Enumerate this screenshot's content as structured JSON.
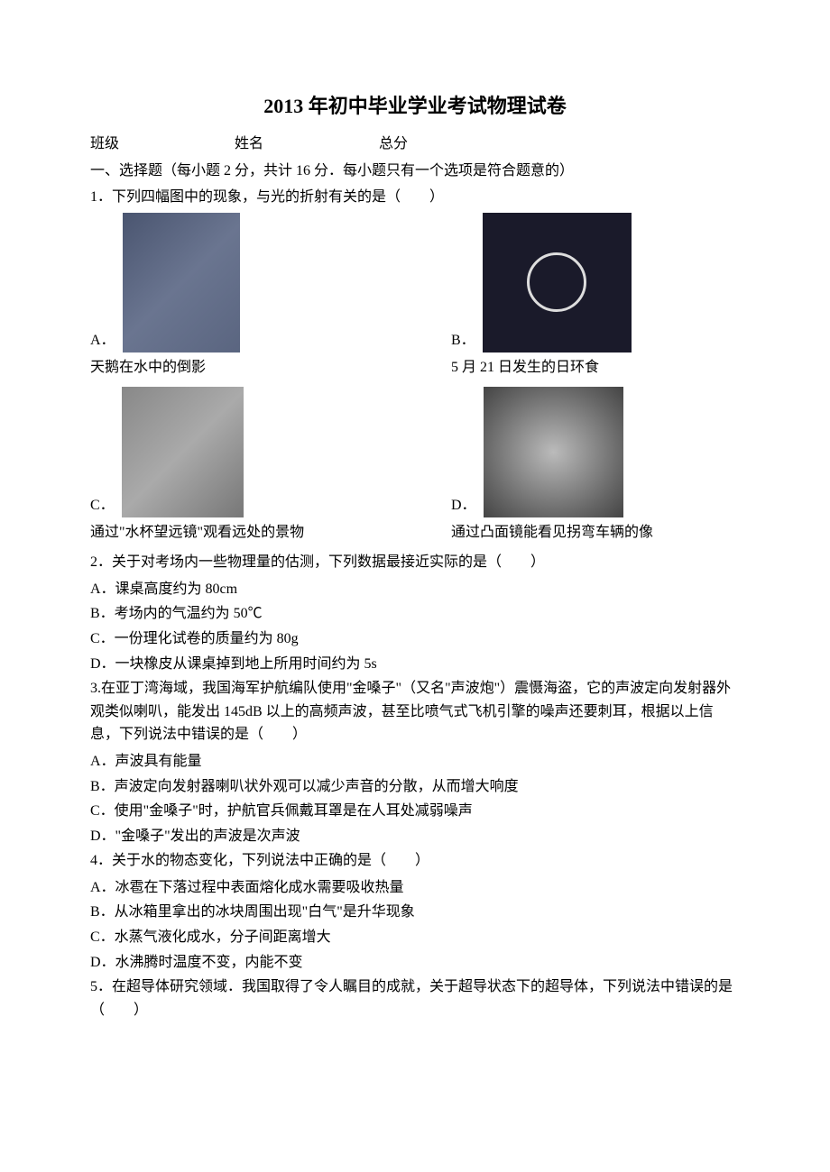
{
  "title": "2013 年初中毕业学业考试物理试卷",
  "info": {
    "class_label": "班级",
    "name_label": "姓名",
    "score_label": "总分"
  },
  "section1": {
    "header": "一、选择题（每小题 2 分，共计 16 分．每小题只有一个选项是符合题意的）"
  },
  "q1": {
    "text": "1．下列四幅图中的现象，与光的折射有关的是（　　）",
    "option_a_label": "A．",
    "option_a_caption": "天鹅在水中的倒影",
    "option_b_label": "B．",
    "option_b_caption": "5 月 21 日发生的日环食",
    "option_c_label": "C．",
    "option_c_caption": "通过\"水杯望远镜\"观看远处的景物",
    "option_d_label": "D．",
    "option_d_caption": "通过凸面镜能看见拐弯车辆的像"
  },
  "q2": {
    "text": "2．关于对考场内一些物理量的估测，下列数据最接近实际的是（　　）",
    "a": "A．课桌高度约为 80cm",
    "b": "B．考场内的气温约为 50℃",
    "c": "C．一份理化试卷的质量约为 80g",
    "d": "D．一块橡皮从课桌掉到地上所用时间约为 5s"
  },
  "q3": {
    "text": "3.在亚丁湾海域，我国海军护航编队使用\"金嗓子\"（又名\"声波炮\"）震慑海盗，它的声波定向发射器外观类似喇叭，能发出 145dB 以上的高频声波，甚至比喷气式飞机引擎的噪声还要刺耳，根据以上信息，下列说法中错误的是（　　）",
    "a": "A．声波具有能量",
    "b": "B．声波定向发射器喇叭状外观可以减少声音的分散，从而增大响度",
    "c": "C．使用\"金嗓子\"时，护航官兵佩戴耳罩是在人耳处减弱噪声",
    "d": "D．\"金嗓子\"发出的声波是次声波"
  },
  "q4": {
    "text": "4．关于水的物态变化，下列说法中正确的是（　　）",
    "a": "A．冰雹在下落过程中表面熔化成水需要吸收热量",
    "b": "B．从冰箱里拿出的冰块周围出现\"白气\"是升华现象",
    "c": "C．水蒸气液化成水，分子间距离增大",
    "d": "D．水沸腾时温度不变，内能不变"
  },
  "q5": {
    "text": "5．在超导体研究领域．我国取得了令人瞩目的成就，关于超导状态下的超导体，下列说法中错误的是（　　）"
  }
}
